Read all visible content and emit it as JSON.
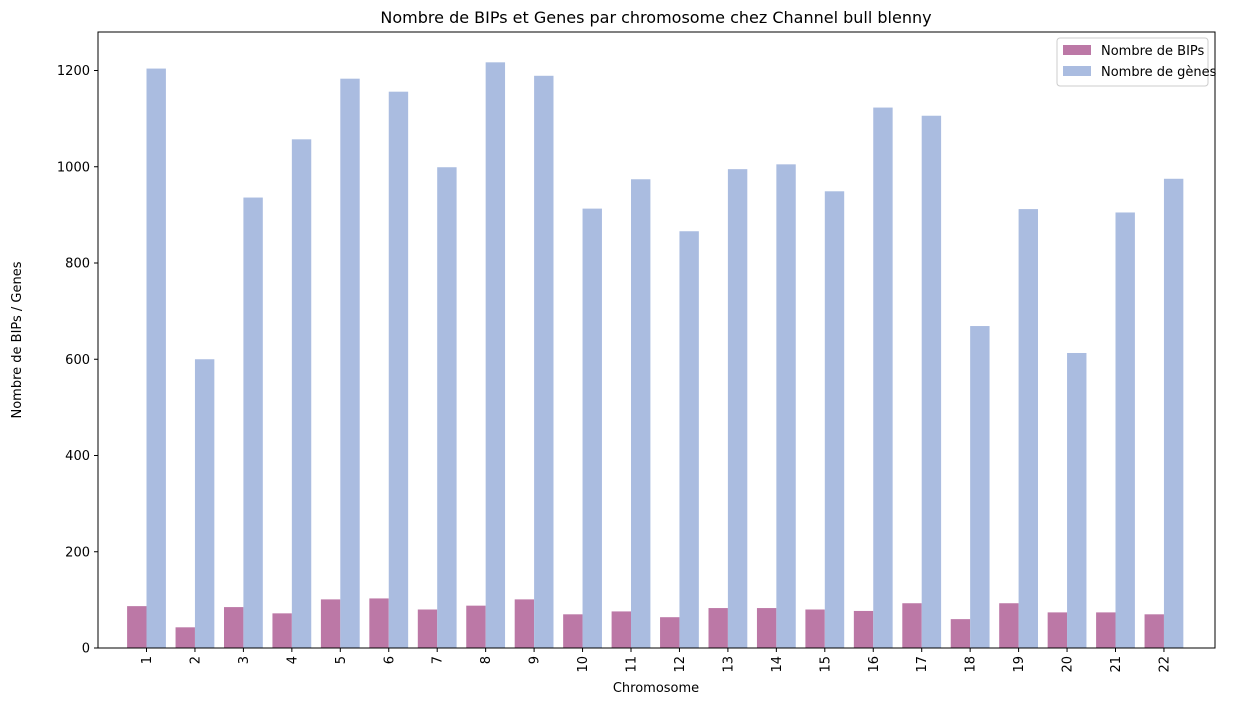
{
  "chart_data": {
    "type": "bar",
    "title": "Nombre de BIPs et Genes par chromosome chez Channel bull blenny",
    "xlabel": "Chromosome",
    "ylabel": "Nombre de BIPs / Genes",
    "ylim": [
      0,
      1280
    ],
    "yticks": [
      0,
      200,
      400,
      600,
      800,
      1000,
      1200
    ],
    "grid": false,
    "legend_position": "top-right",
    "categories": [
      "1",
      "2",
      "3",
      "4",
      "5",
      "6",
      "7",
      "8",
      "9",
      "10",
      "11",
      "12",
      "13",
      "14",
      "15",
      "16",
      "17",
      "18",
      "19",
      "20",
      "21",
      "22"
    ],
    "series": [
      {
        "name": "Nombre de BIPs",
        "color": "#bc78a6",
        "values": [
          87,
          43,
          85,
          72,
          101,
          103,
          80,
          88,
          101,
          70,
          76,
          64,
          83,
          83,
          80,
          77,
          93,
          60,
          93,
          74,
          74,
          70
        ]
      },
      {
        "name": "Nombre de gènes",
        "color": "#aabce0",
        "values": [
          1204,
          600,
          936,
          1057,
          1183,
          1156,
          999,
          1217,
          1189,
          913,
          974,
          866,
          995,
          1005,
          949,
          1123,
          1106,
          669,
          912,
          613,
          905,
          975
        ]
      }
    ]
  }
}
